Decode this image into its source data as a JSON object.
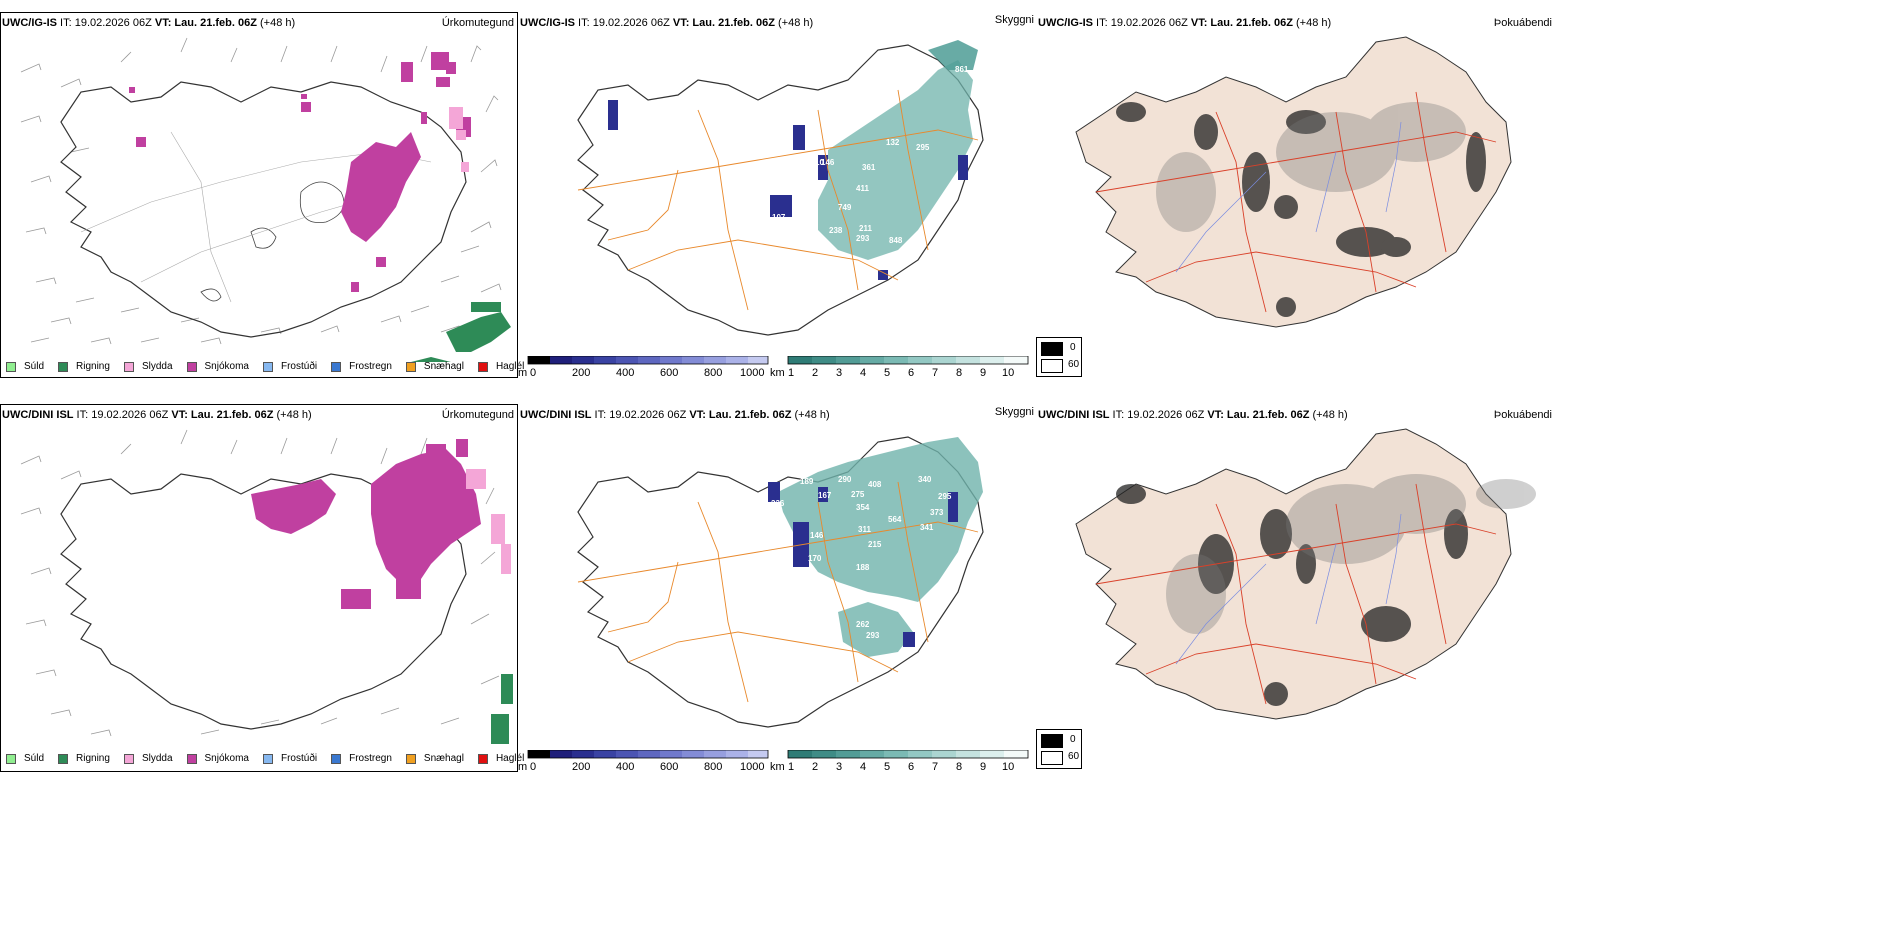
{
  "rows": [
    {
      "model_label": "UWC/IG-IS",
      "it_label": " IT: 19.02.2026 06Z ",
      "vt_label": "VT: Lau. 21.feb. 06Z",
      "lead_label": " (+48 h)",
      "panel_titles": [
        "Úrkomutegund",
        "Skyggni",
        "Þokuábendi"
      ],
      "elevation_labels": [
        {
          "v": "536"
        },
        {
          "v": "749"
        },
        {
          "v": "361"
        },
        {
          "v": "295"
        },
        {
          "v": "411"
        },
        {
          "v": "211"
        },
        {
          "v": "293"
        },
        {
          "v": "848"
        },
        {
          "v": "238"
        },
        {
          "v": "107"
        },
        {
          "v": "110"
        },
        {
          "v": "146"
        },
        {
          "v": "132"
        },
        {
          "v": "861"
        }
      ]
    },
    {
      "model_label": "UWC/DINI ISL",
      "it_label": " IT: 19.02.2026 06Z ",
      "vt_label": "VT: Lau. 21.feb. 06Z",
      "lead_label": " (+48 h)",
      "panel_titles": [
        "Úrkomutegund",
        "Skyggni",
        "Þokuábendi"
      ],
      "elevation_labels": [
        {
          "v": "340"
        },
        {
          "v": "295"
        },
        {
          "v": "373"
        },
        {
          "v": "341"
        },
        {
          "v": "564"
        },
        {
          "v": "311"
        },
        {
          "v": "215"
        },
        {
          "v": "275"
        },
        {
          "v": "354"
        },
        {
          "v": "167"
        },
        {
          "v": "189"
        },
        {
          "v": "236"
        },
        {
          "v": "146"
        },
        {
          "v": "170"
        },
        {
          "v": "188"
        },
        {
          "v": "262"
        },
        {
          "v": "293"
        },
        {
          "v": "290"
        },
        {
          "v": "408"
        }
      ]
    }
  ],
  "precip_legend": [
    {
      "label": "Súld",
      "color": "#90ee90"
    },
    {
      "label": "Rigning",
      "color": "#2e8b57"
    },
    {
      "label": "Slydda",
      "color": "#f4a6d7"
    },
    {
      "label": "Snjókoma",
      "color": "#c040a0"
    },
    {
      "label": "Frostúði",
      "color": "#87b8f0"
    },
    {
      "label": "Frostregn",
      "color": "#3a78d0"
    },
    {
      "label": "Snæhagl",
      "color": "#f0a020"
    },
    {
      "label": "Haglél",
      "color": "#e01010"
    }
  ],
  "elev_scale": {
    "unit": "m",
    "ticks": [
      "0",
      "200",
      "400",
      "600",
      "800",
      "1000"
    ]
  },
  "vis_scale": {
    "unit": "km",
    "ticks": [
      "1",
      "2",
      "3",
      "4",
      "5",
      "6",
      "7",
      "8",
      "9",
      "10"
    ]
  },
  "fog_legend": [
    "0",
    "60"
  ],
  "colors": {
    "snow": "#c040a0",
    "sleet": "#f4a6d7",
    "rain": "#2e8b57",
    "teal": "#5fa6a0",
    "navy": "#2a2f8f",
    "roads": "#e8892c",
    "land": "#f2e2d6",
    "redroads": "#d9412a",
    "rivers": "#7a8ce0"
  }
}
